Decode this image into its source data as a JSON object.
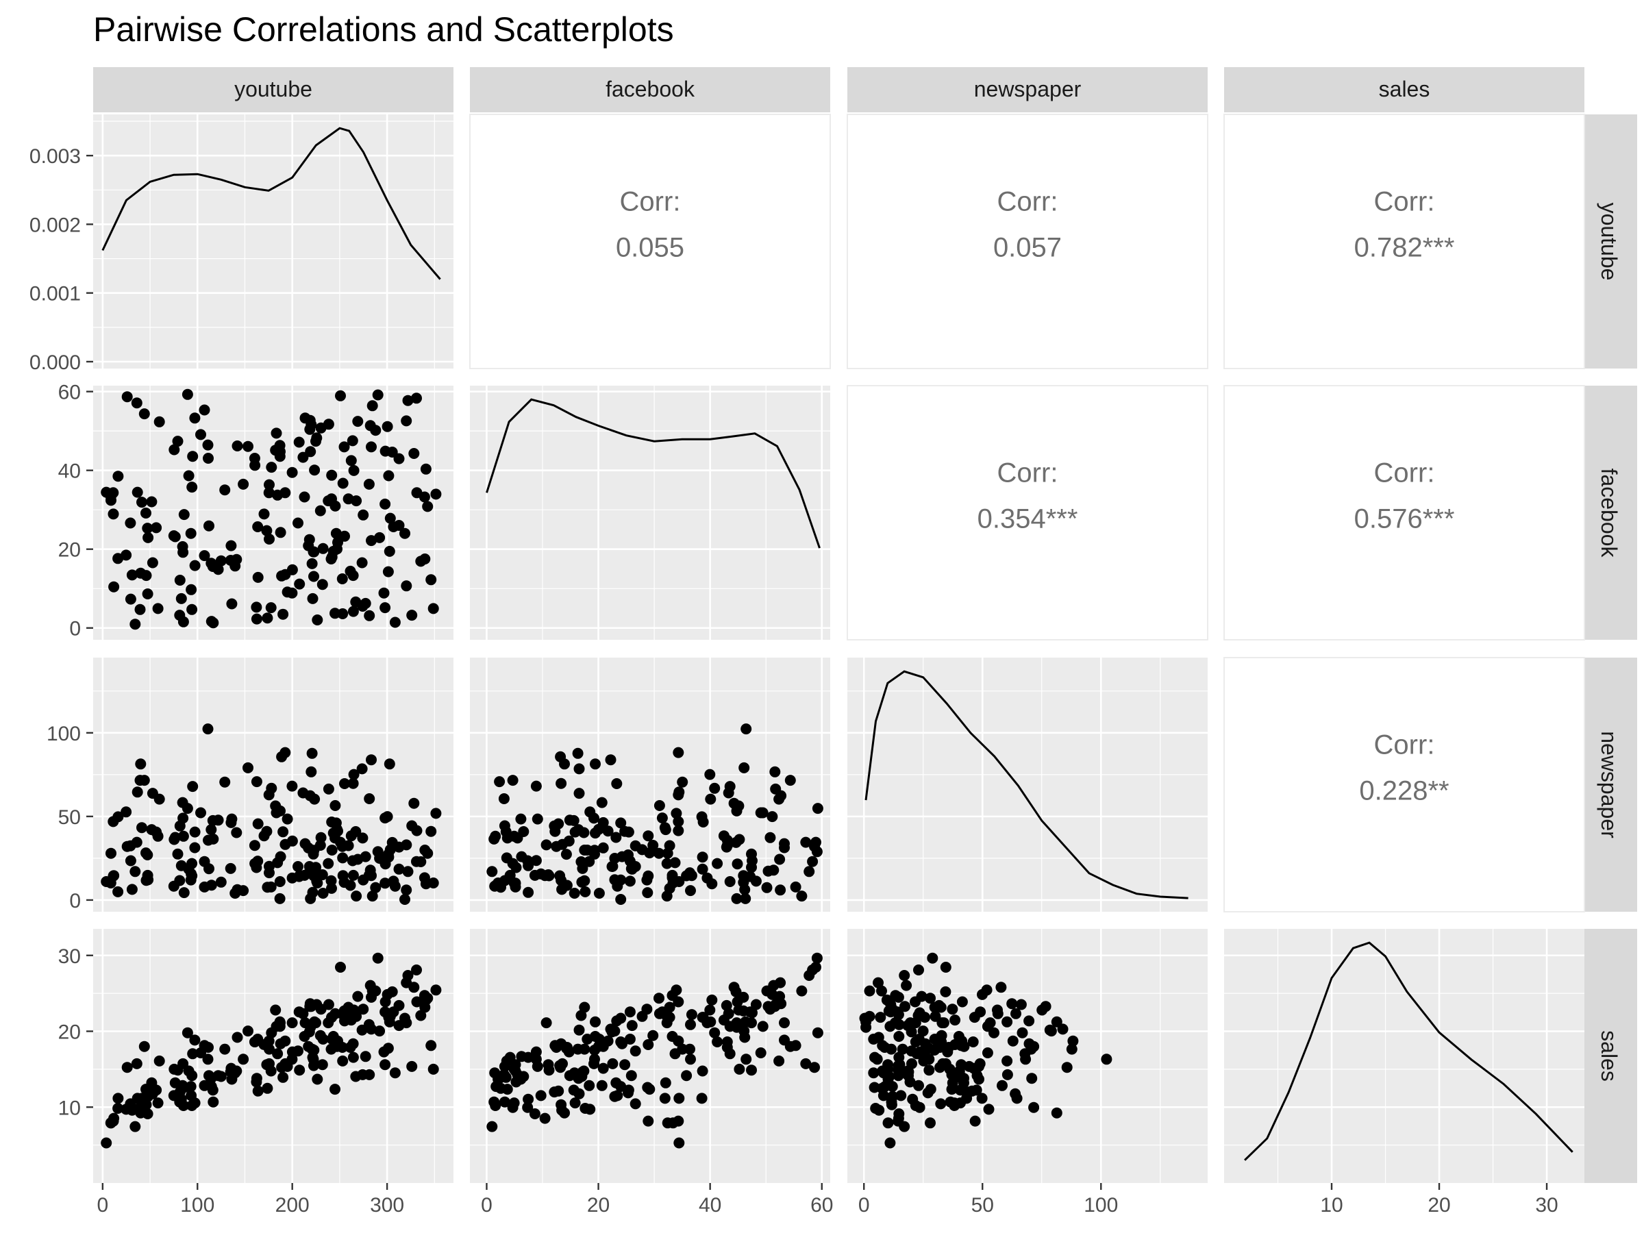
{
  "chart_data": {
    "type": "scatter",
    "title": "Pairwise Correlations and Scatterplots",
    "variables": [
      "youtube",
      "facebook",
      "newspaper",
      "sales"
    ],
    "axes": {
      "youtube": {
        "lim": [
          -10,
          370
        ],
        "ticks": [
          0,
          100,
          200,
          300
        ]
      },
      "facebook": {
        "lim": [
          -3,
          61.5
        ],
        "ticks": [
          0,
          20,
          40,
          60
        ]
      },
      "newspaper": {
        "lim": [
          -7,
          145
        ],
        "ticks": [
          0,
          50,
          100
        ]
      },
      "sales": {
        "lim": [
          0,
          33.5
        ],
        "ticks": [
          10,
          20,
          30
        ]
      }
    },
    "density_axis": {
      "lim": [
        -0.0001,
        0.0036
      ],
      "ticks": [
        0.0,
        0.001,
        0.002,
        0.003
      ],
      "tick_labels": [
        "0.000",
        "0.001",
        "0.002",
        "0.003"
      ]
    },
    "correlations": [
      {
        "row": "youtube",
        "col": "facebook",
        "label": "Corr:",
        "value": "0.055"
      },
      {
        "row": "youtube",
        "col": "newspaper",
        "label": "Corr:",
        "value": "0.057"
      },
      {
        "row": "youtube",
        "col": "sales",
        "label": "Corr:",
        "value": "0.782***"
      },
      {
        "row": "facebook",
        "col": "newspaper",
        "label": "Corr:",
        "value": "0.354***"
      },
      {
        "row": "facebook",
        "col": "sales",
        "label": "Corr:",
        "value": "0.576***"
      },
      {
        "row": "newspaper",
        "col": "sales",
        "label": "Corr:",
        "value": "0.228**"
      }
    ],
    "densities": {
      "youtube": {
        "x": [
          0,
          25,
          50,
          75,
          100,
          125,
          150,
          175,
          200,
          225,
          250,
          260,
          275,
          300,
          325,
          356
        ],
        "y": [
          0.00162,
          0.00235,
          0.00262,
          0.00272,
          0.00273,
          0.00265,
          0.00254,
          0.00249,
          0.00268,
          0.00315,
          0.0034,
          0.00336,
          0.00305,
          0.00235,
          0.0017,
          0.0012
        ]
      },
      "facebook": {
        "x": [
          0,
          4,
          8,
          12,
          16,
          20,
          25,
          30,
          35,
          40,
          44,
          48,
          52,
          56,
          59.6
        ],
        "y": [
          0.0142,
          0.0215,
          0.0238,
          0.0232,
          0.022,
          0.0211,
          0.0201,
          0.0195,
          0.0197,
          0.0197,
          0.02,
          0.0203,
          0.019,
          0.0145,
          0.0085
        ]
      },
      "newspaper": {
        "x": [
          0.8,
          5,
          10,
          17,
          25,
          35,
          45,
          55,
          65,
          75,
          85,
          95,
          105,
          115,
          125,
          136.8
        ],
        "y": [
          0.0035,
          0.0062,
          0.0075,
          0.0079,
          0.0077,
          0.0068,
          0.0058,
          0.005,
          0.004,
          0.0028,
          0.0019,
          0.001,
          0.0006,
          0.0003,
          0.0002,
          0.00015
        ]
      },
      "sales": {
        "x": [
          1.92,
          4,
          6,
          8,
          10,
          12,
          13.5,
          15,
          17,
          20,
          23,
          26,
          29,
          32.4
        ],
        "y": [
          0.005,
          0.013,
          0.03,
          0.05,
          0.072,
          0.083,
          0.085,
          0.08,
          0.067,
          0.052,
          0.042,
          0.033,
          0.022,
          0.008
        ]
      }
    },
    "points": [
      [
        84.72,
        19.2,
        48.96,
        15.72
      ],
      [
        351.48,
        33.96,
        51.84,
        25.44
      ],
      [
        135.48,
        20.88,
        46.32,
        15.12
      ],
      [
        116.64,
        1.32,
        36.48,
        10.68
      ],
      [
        318.72,
        24.0,
        0.36,
        21.72
      ],
      [
        114.84,
        1.68,
        8.88,
        12.72
      ],
      [
        348.84,
        4.92,
        10.2,
        15.0
      ],
      [
        320.28,
        52.56,
        6.0,
        26.4
      ],
      [
        89.64,
        59.28,
        54.84,
        19.8
      ],
      [
        51.72,
        32.04,
        42.12,
        13.2
      ],
      [
        273.6,
        16.56,
        78.48,
        20.16
      ],
      [
        246.36,
        24.0,
        46.08,
        18.6
      ],
      [
        284.52,
        56.4,
        2.4,
        25.32
      ],
      [
        173.76,
        2.52,
        7.68,
        12.48
      ],
      [
        47.52,
        8.64,
        14.76,
        9.12
      ],
      [
        8.64,
        33.36,
        10.2,
        7.92
      ],
      [
        221.52,
        7.44,
        4.56,
        16.56
      ],
      [
        281.04,
        36.48,
        14.88,
        20.88
      ],
      [
        238.44,
        51.72,
        66.36,
        23.52
      ],
      [
        192.6,
        13.56,
        33.24,
        15.72
      ],
      [
        264.24,
        13.32,
        69.72,
        18.36
      ],
      [
        75.12,
        23.4,
        8.28,
        11.52
      ],
      [
        300.36,
        51.12,
        49.92,
        24.84
      ],
      [
        219.12,
        44.76,
        0.84,
        20.52
      ],
      [
        261.24,
        14.4,
        8.76,
        17.88
      ],
      [
        301.32,
        14.28,
        27.36,
        17.76
      ],
      [
        97.32,
        15.84,
        40.68,
        10.56
      ],
      [
        211.32,
        43.32,
        64.08,
        22.32
      ],
      [
        36.72,
        34.44,
        64.56,
        11.16
      ],
      [
        148.32,
        36.48,
        5.64,
        16.32
      ],
      [
        116.28,
        15.6,
        47.52,
        12.24
      ],
      [
        173.04,
        24.72,
        41.04,
        15.6
      ],
      [
        163.92,
        12.84,
        45.6,
        12.12
      ],
      [
        326.04,
        3.24,
        44.4,
        15.36
      ],
      [
        306.72,
        25.68,
        11.28,
        22.56
      ],
      [
        250.8,
        58.92,
        34.56,
        28.44
      ],
      [
        16.08,
        17.64,
        4.92,
        9.84
      ],
      [
        47.28,
        25.32,
        27.0,
        11.88
      ],
      [
        290.28,
        59.16,
        28.92,
        29.64
      ],
      [
        213.6,
        53.28,
        33.72,
        21.12
      ],
      [
        301.68,
        38.64,
        25.68,
        21.84
      ],
      [
        103.44,
        49.08,
        52.2,
        17.16
      ],
      [
        259.2,
        32.76,
        32.52,
        23.16
      ],
      [
        302.64,
        19.44,
        81.36,
        21.24
      ],
      [
        94.2,
        35.76,
        14.52,
        14.16
      ],
      [
        312.6,
        26.04,
        18.48,
        20.76
      ],
      [
        245.04,
        3.72,
        37.08,
        12.36
      ],
      [
        182.28,
        45.12,
        56.28,
        22.8
      ],
      [
        312.6,
        42.96,
        31.68,
        23.4
      ],
      [
        263.64,
        47.52,
        23.52,
        22.44
      ],
      [
        75.48,
        45.24,
        36.24,
        15.0
      ],
      [
        184.44,
        33.72,
        22.32,
        17.04
      ],
      [
        321.96,
        57.72,
        17.04,
        27.36
      ],
      [
        331.32,
        34.32,
        41.52,
        23.88
      ],
      [
        153.24,
        46.08,
        79.08,
        20.04
      ],
      [
        247.2,
        20.04,
        42.24,
        18.0
      ],
      [
        237.96,
        32.28,
        21.84,
        21.12
      ],
      [
        274.8,
        28.68,
        12.0,
        22.92
      ],
      [
        328.32,
        44.28,
        57.84,
        25.8
      ],
      [
        177.6,
        5.16,
        7.8,
        14.76
      ],
      [
        175.44,
        34.32,
        62.88,
        18.72
      ],
      [
        31.08,
        13.44,
        6.36,
        9.6
      ],
      [
        241.56,
        38.76,
        46.68,
        21.84
      ],
      [
        111.36,
        43.08,
        35.76,
        17.88
      ],
      [
        224.76,
        47.4,
        19.56,
        21.12
      ],
      [
        81.6,
        12.12,
        44.28,
        12.0
      ],
      [
        297.84,
        31.44,
        49.08,
        22.56
      ],
      [
        11.76,
        10.44,
        14.64,
        8.52
      ],
      [
        254.76,
        45.96,
        10.56,
        22.68
      ],
      [
        223.44,
        40.08,
        60.36,
        21.24
      ],
      [
        39.48,
        4.68,
        71.64,
        9.96
      ],
      [
        222.84,
        19.32,
        29.76,
        17.52
      ],
      [
        94.92,
        43.56,
        67.92,
        17.04
      ],
      [
        222.24,
        19.32,
        27.48,
        16.32
      ],
      [
        93.12,
        24.0,
        12.0,
        12.72
      ],
      [
        160.56,
        41.28,
        21.84,
        18.6
      ],
      [
        292.08,
        22.92,
        24.96,
        20.04
      ],
      [
        45.6,
        29.16,
        28.2,
        12.36
      ],
      [
        245.28,
        30.96,
        56.52,
        22.32
      ],
      [
        44.04,
        54.36,
        71.64,
        18.0
      ],
      [
        163.56,
        25.68,
        23.28,
        18.96
      ],
      [
        52.8,
        16.56,
        63.84,
        11.76
      ],
      [
        266.88,
        6.6,
        40.92,
        14.04
      ],
      [
        200.16,
        14.76,
        35.28,
        17.28
      ],
      [
        277.32,
        6.24,
        25.92,
        16.68
      ],
      [
        220.92,
        16.32,
        87.72,
        17.64
      ],
      [
        34.32,
        0.96,
        17.04,
        7.44
      ],
      [
        339.6,
        33.24,
        13.32,
        24.72
      ],
      [
        135.0,
        17.16,
        18.84,
        14.64
      ],
      [
        141.24,
        17.4,
        40.32,
        14.76
      ],
      [
        232.44,
        20.16,
        4.08,
        18.96
      ],
      [
        162.6,
        2.28,
        70.8,
        13.8
      ],
      [
        93.36,
        9.72,
        15.6,
        11.52
      ],
      [
        230.28,
        50.76,
        37.32,
        22.92
      ],
      [
        47.88,
        22.92,
        12.12,
        11.4
      ],
      [
        241.92,
        18.0,
        29.88,
        18.96
      ],
      [
        219.96,
        51.6,
        76.68,
        23.28
      ],
      [
        252.84,
        12.48,
        32.04,
        17.88
      ],
      [
        187.2,
        44.76,
        53.28,
        21.12
      ],
      [
        308.52,
        1.44,
        8.28,
        14.52
      ],
      [
        283.32,
        22.2,
        83.88,
        20.28
      ],
      [
        206.04,
        26.64,
        20.04,
        17.4
      ],
      [
        269.04,
        52.44,
        24.36,
        24.6
      ],
      [
        170.28,
        28.92,
        38.4,
        18.24
      ],
      [
        16.32,
        38.52,
        49.8,
        11.16
      ],
      [
        128.88,
        35.04,
        70.56,
        17.64
      ],
      [
        40.08,
        13.92,
        81.36,
        9.24
      ],
      [
        274.2,
        5.52,
        37.08,
        14.28
      ],
      [
        25.92,
        58.68,
        32.04,
        15.24
      ],
      [
        142.08,
        46.2,
        6.24,
        19.2
      ],
      [
        190.2,
        3.48,
        40.8,
        13.92
      ],
      [
        212.88,
        33.24,
        14.76,
        19.32
      ],
      [
        111.0,
        46.44,
        102.36,
        16.32
      ],
      [
        79.2,
        47.4,
        27.48,
        14.88
      ],
      [
        335.52,
        16.92,
        22.92,
        22.08
      ],
      [
        59.88,
        52.32,
        60.36,
        16.08
      ],
      [
        187.68,
        24.24,
        25.92,
        18.36
      ],
      [
        29.28,
        26.64,
        32.4,
        10.44
      ],
      [
        124.92,
        17.04,
        10.68,
        14.04
      ],
      [
        225.72,
        48.24,
        11.28,
        23.52
      ],
      [
        85.92,
        28.8,
        4.44,
        12.6
      ],
      [
        231.84,
        11.04,
        15.12,
        15.6
      ],
      [
        107.4,
        18.36,
        23.04,
        12.84
      ],
      [
        175.68,
        22.56,
        20.16,
        15.72
      ],
      [
        11.16,
        34.32,
        46.92,
        8.16
      ],
      [
        320.4,
        10.68,
        33.0,
        21.12
      ],
      [
        36.12,
        57.12,
        34.56,
        15.72
      ],
      [
        296.64,
        8.88,
        23.64,
        17.28
      ],
      [
        281.28,
        3.12,
        60.6,
        14.28
      ],
      [
        207.6,
        11.16,
        14.52,
        14.88
      ],
      [
        341.04,
        40.32,
        9.72,
        24.12
      ],
      [
        24.72,
        18.48,
        52.68,
        9.72
      ],
      [
        218.88,
        52.68,
        62.4,
        23.64
      ],
      [
        175.68,
        36.36,
        16.32,
        17.64
      ],
      [
        342.72,
        30.84,
        27.96,
        24.36
      ],
      [
        81.24,
        3.24,
        11.64,
        10.68
      ],
      [
        264.96,
        39.96,
        75.12,
        22.8
      ],
      [
        90.84,
        38.64,
        18.48,
        14.76
      ],
      [
        194.88,
        9.12,
        48.48,
        15.36
      ],
      [
        255.12,
        23.28,
        69.6,
        21.36
      ],
      [
        85.32,
        1.56,
        38.16,
        10.2
      ],
      [
        107.4,
        55.32,
        7.8,
        18.12
      ],
      [
        287.88,
        50.16,
        7.44,
        25.32
      ],
      [
        186.96,
        46.32,
        0.84,
        21.24
      ],
      [
        114.48,
        16.44,
        42.12,
        13.8
      ],
      [
        339.84,
        17.52,
        29.88,
        23.16
      ],
      [
        262.2,
        42.48,
        38.4,
        21.48
      ],
      [
        229.68,
        29.76,
        32.76,
        19.44
      ],
      [
        264.48,
        4.2,
        14.76,
        16.56
      ],
      [
        183.24,
        49.44,
        52.2,
        20.64
      ],
      [
        121.92,
        14.88,
        47.76,
        14.16
      ],
      [
        253.44,
        36.72,
        14.64,
        22.2
      ],
      [
        216.96,
        20.88,
        31.2,
        18.0
      ],
      [
        45.96,
        13.32,
        11.76,
        10.32
      ],
      [
        84.36,
        20.64,
        58.32,
        12.84
      ],
      [
        160.44,
        43.08,
        32.64,
        18.6
      ],
      [
        267.48,
        32.28,
        2.4,
        21.96
      ],
      [
        283.32,
        45.96,
        14.64,
        24.48
      ],
      [
        298.2,
        44.88,
        21.6,
        23.88
      ],
      [
        297.84,
        5.16,
        10.08,
        15.6
      ],
      [
        56.52,
        25.44,
        40.68,
        12.24
      ],
      [
        199.8,
        8.88,
        68.16,
        16.32
      ],
      [
        41.28,
        31.92,
        43.32,
        11.16
      ],
      [
        192.48,
        34.32,
        88.2,
        18.72
      ],
      [
        97.2,
        53.28,
        31.32,
        18.84
      ],
      [
        330.96,
        58.32,
        23.04,
        28.08
      ],
      [
        83.04,
        7.44,
        20.52,
        11.04
      ],
      [
        305.52,
        44.64,
        34.44,
        25.2
      ],
      [
        247.92,
        21.72,
        41.28,
        18.72
      ],
      [
        253.08,
        3.6,
        25.2,
        16.08
      ],
      [
        188.76,
        13.2,
        85.68,
        15.24
      ],
      [
        303.36,
        27.84,
        30.12,
        21.96
      ],
      [
        199.92,
        39.48,
        13.2,
        21.12
      ],
      [
        136.2,
        6.12,
        48.48,
        13.68
      ],
      [
        218.16,
        22.44,
        20.04,
        19.92
      ],
      [
        241.44,
        32.76,
        6.96,
        21.84
      ],
      [
        282.36,
        51.36,
        17.88,
        26.04
      ],
      [
        187.08,
        43.56,
        11.04,
        20.64
      ],
      [
        29.64,
        7.32,
        23.52,
        9.96
      ],
      [
        243.36,
        19.44,
        40.08,
        19.32
      ],
      [
        112.08,
        25.92,
        18.72,
        14.16
      ],
      [
        162.24,
        5.28,
        19.44,
        13.32
      ],
      [
        218.52,
        50.4,
        17.28,
        23.28
      ],
      [
        8.76,
        32.4,
        27.96,
        7.92
      ],
      [
        76.56,
        23.16,
        37.44,
        13.2
      ],
      [
        222.6,
        13.08,
        14.52,
        15.48
      ],
      [
        178.08,
        40.8,
        66.84,
        19.8
      ],
      [
        139.68,
        15.72,
        4.08,
        14.52
      ],
      [
        58.32,
        4.92,
        38.16,
        10.56
      ],
      [
        207.24,
        47.16,
        14.04,
        22.56
      ],
      [
        241.08,
        17.52,
        11.52,
        17.64
      ],
      [
        11.28,
        28.92,
        14.4,
        8.16
      ],
      [
        346.32,
        12.24,
        41.04,
        18.12
      ],
      [
        94.08,
        4.68,
        21.84,
        10.2
      ],
      [
        3.84,
        34.44,
        11.04,
        5.28
      ],
      [
        226.44,
        2.04,
        10.2,
        13.68
      ]
    ]
  }
}
